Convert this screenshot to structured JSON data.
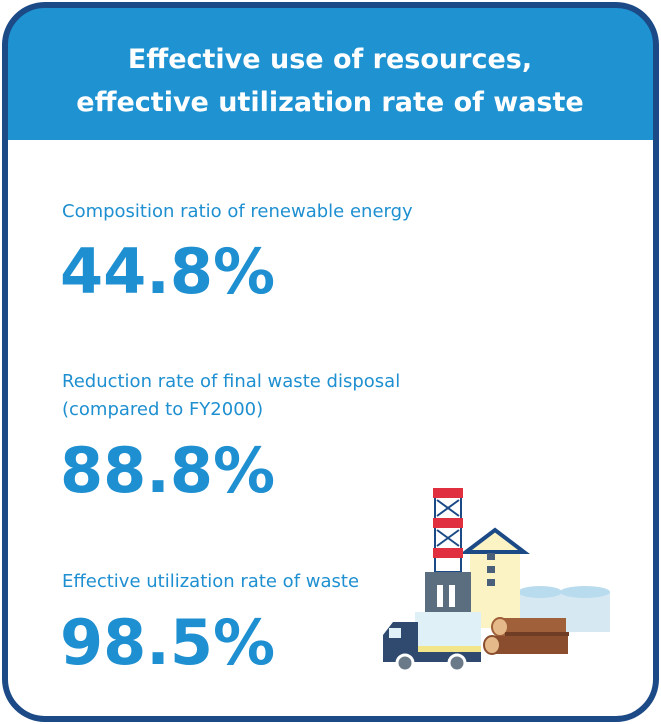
{
  "header": {
    "title": [
      "Effective use of resources,",
      "effective utilization rate of waste"
    ]
  },
  "items": [
    {
      "label": [
        "Composition ratio of renewable energy"
      ],
      "value": "44.8%"
    },
    {
      "label": [
        "Reduction rate of final waste disposal",
        "(compared to FY2000)"
      ],
      "value": "88.8%"
    },
    {
      "label": [
        "Effective utilization rate of waste"
      ],
      "value": "98.5%"
    }
  ]
}
